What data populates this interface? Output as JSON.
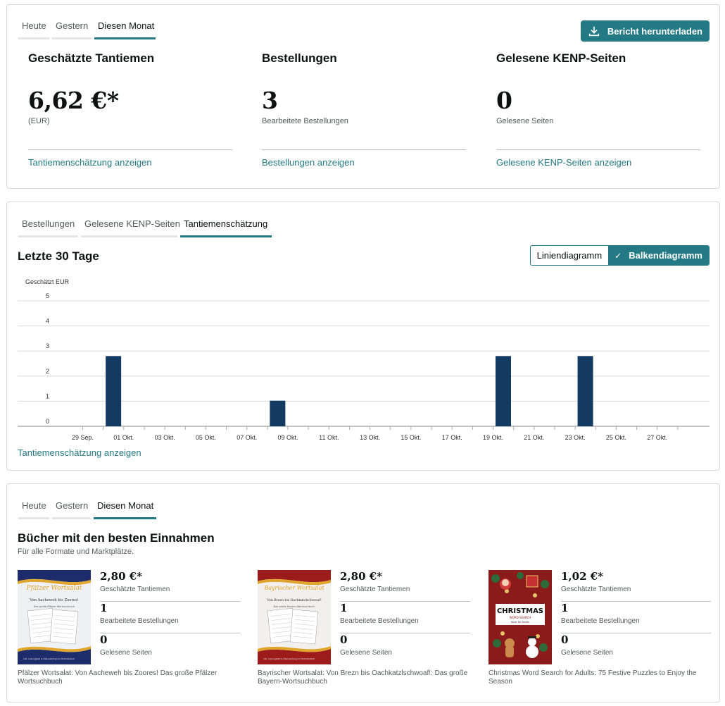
{
  "summary": {
    "tabs": [
      "Heute",
      "Gestern",
      "Diesen Monat"
    ],
    "active_tab": 2,
    "download_button": "Bericht herunterladen",
    "metrics": [
      {
        "title": "Geschätzte Tantiemen",
        "value": "6,62 €*",
        "sub": "(EUR)",
        "link": "Tantiemenschätzung anzeigen"
      },
      {
        "title": "Bestellungen",
        "value": "3",
        "sub": "Bearbeitete Bestellungen",
        "link": "Bestellungen anzeigen"
      },
      {
        "title": "Gelesene KENP-Seiten",
        "value": "0",
        "sub": "Gelesene Seiten",
        "link": "Gelesene KENP-Seiten anzeigen"
      }
    ]
  },
  "chart_section": {
    "tabs": [
      "Bestellungen",
      "Gelesene KENP-Seiten",
      "Tantiemenschätzung"
    ],
    "active_tab": 2,
    "title": "Letzte 30 Tage",
    "toggle": {
      "line": "Liniendiagramm",
      "bar": "Balkendiagramm",
      "active": "bar"
    },
    "link": "Tantiemenschätzung anzeigen"
  },
  "chart_data": {
    "type": "bar",
    "ylabel": "Geschätzt EUR",
    "ylim": [
      0,
      5
    ],
    "yticks": [
      0,
      1,
      2,
      3,
      4,
      5
    ],
    "grid": true,
    "categories": [
      "29 Sep.",
      "30 Sep.",
      "01 Okt.",
      "02 Okt.",
      "03 Okt.",
      "04 Okt.",
      "05 Okt.",
      "06 Okt.",
      "07 Okt.",
      "08 Okt.",
      "09 Okt.",
      "10 Okt.",
      "11 Okt.",
      "12 Okt.",
      "13 Okt.",
      "14 Okt.",
      "15 Okt.",
      "16 Okt.",
      "17 Okt.",
      "18 Okt.",
      "19 Okt.",
      "20 Okt.",
      "21 Okt.",
      "22 Okt.",
      "23 Okt.",
      "24 Okt.",
      "25 Okt.",
      "26 Okt.",
      "27 Okt.",
      "28 Okt."
    ],
    "tick_labels": [
      "29 Sep.",
      "",
      "01 Okt.",
      "",
      "03 Okt.",
      "",
      "05 Okt.",
      "",
      "07 Okt.",
      "",
      "09 Okt.",
      "",
      "11 Okt.",
      "",
      "13 Okt.",
      "",
      "15 Okt.",
      "",
      "17 Okt.",
      "",
      "19 Okt.",
      "",
      "21 Okt.",
      "",
      "23 Okt.",
      "",
      "25 Okt.",
      "",
      "27 Okt.",
      ""
    ],
    "values": [
      0,
      2.8,
      0,
      0,
      0,
      0,
      0,
      0,
      0,
      1.02,
      0,
      0,
      0,
      0,
      0,
      0,
      0,
      0,
      0,
      0,
      2.8,
      0,
      0,
      0,
      2.8,
      0,
      0,
      0,
      0,
      0
    ],
    "bar_color": "#133a60"
  },
  "top_books": {
    "tabs": [
      "Heute",
      "Gestern",
      "Diesen Monat"
    ],
    "active_tab": 2,
    "title": "Bücher mit den besten Einnahmen",
    "subtitle": "Für alle Formate und Marktplätze.",
    "books": [
      {
        "royalty": "2,80 €*",
        "royalty_label": "Geschätzte Tantiemen",
        "orders": "1",
        "orders_label": "Bearbeitete Bestellungen",
        "pages": "0",
        "pages_label": "Gelesene Seiten",
        "title_line1": "Pfälzer Wortsalat: Von Aacheweh bis Zoores! Das große Pfälzer",
        "title_line2": "Wortsuchbuch",
        "cover": {
          "heading": "Pfälzer Wortsalat",
          "sub": "Von Aacheweh bis Zoores!",
          "small": "Das große Pfälzer Wortsuchbuch",
          "footer": "inkl. Lösungsteil & Übersetzung ins Hochdeutsch",
          "band": "#1d2d6b",
          "accent": "#e0a52b"
        }
      },
      {
        "royalty": "2,80 €*",
        "royalty_label": "Geschätzte Tantiemen",
        "orders": "1",
        "orders_label": "Bearbeitete Bestellungen",
        "pages": "0",
        "pages_label": "Gelesene Seiten",
        "title_line1": "Bayrischer Wortsalat: Von Brezn bis Oachkatzlschwoaf!: Das große",
        "title_line2": "Bayern-Wortsuchbuch",
        "cover": {
          "heading": "Bayrischer Wortsalat",
          "sub": "Von Brezn bis Oachkatzlschwoaf!",
          "small": "Das große Bayern-Wortsuchbuch",
          "footer": "inkl. Lösungsteil & Übersetzung ins Hochdeutsch",
          "band": "#9c1b1b",
          "accent": "#e0a52b"
        }
      },
      {
        "royalty": "1,02 €*",
        "royalty_label": "Geschätzte Tantiemen",
        "orders": "1",
        "orders_label": "Bearbeitete Bestellungen",
        "pages": "0",
        "pages_label": "Gelesene Seiten",
        "title_line1": "Christmas Word Search for Adults: 75 Festive Puzzles to Enjoy the",
        "title_line2": "Season",
        "cover": {
          "heading": "CHRISTMAS",
          "sub": "WORD SEARCH",
          "small": "Book for Adults",
          "band": "#8b1a1a",
          "accent": "#2e6b3a"
        }
      }
    ]
  }
}
